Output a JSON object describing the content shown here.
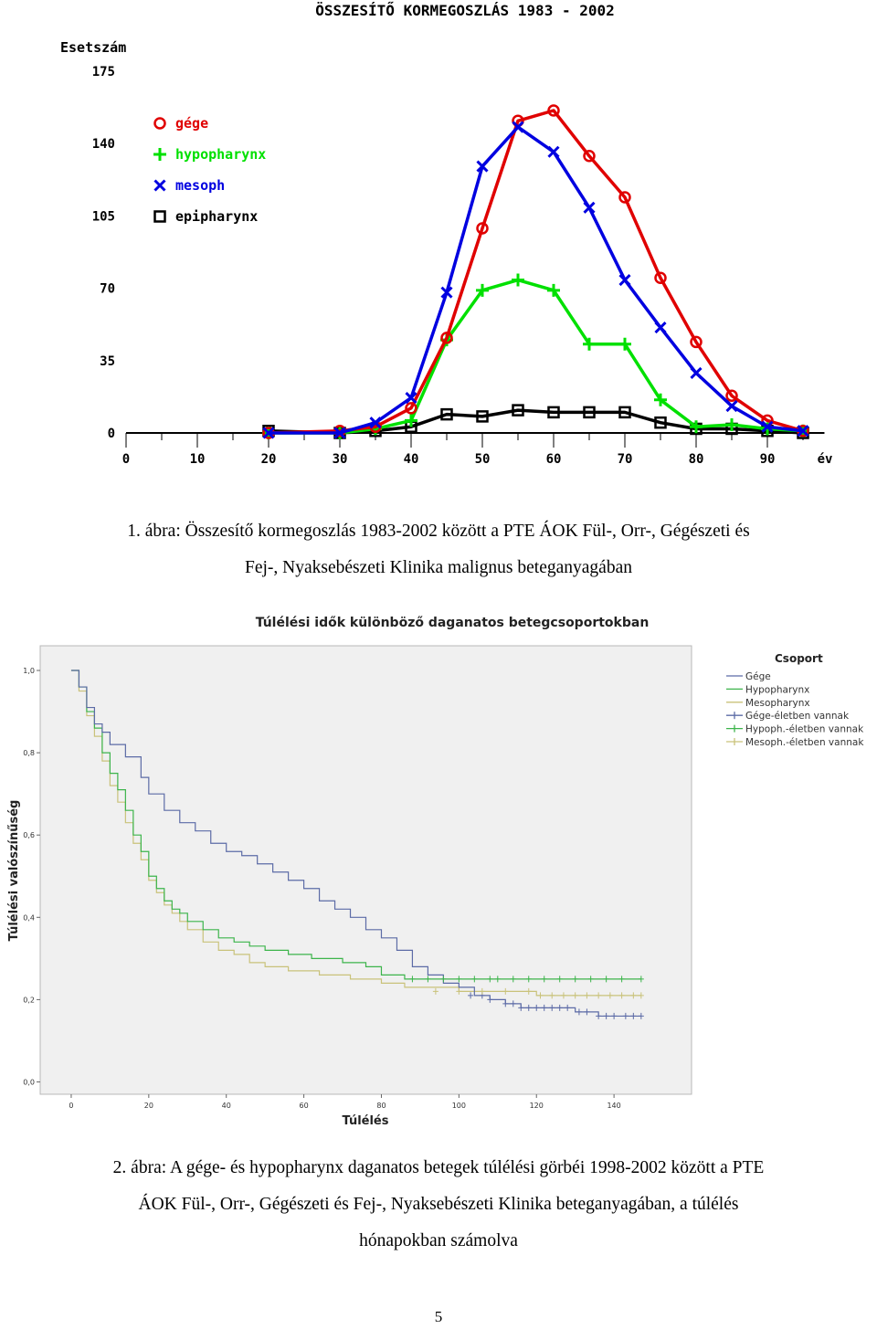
{
  "chart_data": [
    {
      "type": "line",
      "title": "ÖSSZESÍTŐ KORMEGOSZLÁS 1983 - 2002",
      "ylabel": "Esetszám",
      "xlabel": "év",
      "xlim": [
        0,
        98
      ],
      "ylim": [
        0,
        175
      ],
      "xticks": [
        0,
        10,
        20,
        30,
        40,
        50,
        60,
        70,
        80,
        90
      ],
      "yticks": [
        0,
        35,
        70,
        105,
        140,
        175
      ],
      "legend_position": "top-left",
      "baseline": [
        [
          0,
          0
        ],
        [
          20,
          0
        ],
        [
          30,
          0
        ],
        [
          35,
          0
        ],
        [
          40,
          0
        ],
        [
          98,
          0
        ]
      ],
      "series": [
        {
          "name": "gége",
          "color": "#e00000",
          "marker": "circle",
          "x": [
            20,
            30,
            35,
            40,
            45,
            50,
            55,
            60,
            65,
            70,
            75,
            80,
            85,
            90,
            95
          ],
          "y": [
            0,
            1,
            3,
            12,
            46,
            99,
            151,
            156,
            134,
            114,
            75,
            44,
            18,
            6,
            1
          ]
        },
        {
          "name": "hypopharynx",
          "color": "#00e000",
          "marker": "plus",
          "x": [
            20,
            30,
            35,
            40,
            45,
            50,
            55,
            60,
            65,
            70,
            75,
            80,
            85,
            90,
            95
          ],
          "y": [
            0,
            0,
            2,
            6,
            45,
            69,
            74,
            69,
            43,
            43,
            16,
            3,
            4,
            2,
            1
          ]
        },
        {
          "name": "mesoph",
          "color": "#0000e0",
          "marker": "x",
          "x": [
            20,
            30,
            35,
            40,
            45,
            50,
            55,
            60,
            65,
            70,
            75,
            80,
            85,
            90,
            95
          ],
          "y": [
            0,
            0,
            5,
            17,
            68,
            129,
            148,
            136,
            109,
            74,
            51,
            29,
            13,
            3,
            1
          ]
        },
        {
          "name": "epipharynx",
          "color": "#000000",
          "marker": "square",
          "x": [
            20,
            30,
            35,
            40,
            45,
            50,
            55,
            60,
            65,
            70,
            75,
            80,
            85,
            90,
            95
          ],
          "y": [
            1,
            0,
            1,
            3,
            9,
            8,
            11,
            10,
            10,
            10,
            5,
            2,
            2,
            1,
            0
          ]
        }
      ]
    },
    {
      "type": "line",
      "title": "Túlélési idők különböző daganatos betegcsoportokban",
      "xlabel": "Túlélés",
      "ylabel": "Túlélési valószínűség",
      "xlim": [
        -8,
        160
      ],
      "ylim": [
        -0.03,
        1.06
      ],
      "xticks": [
        0,
        20,
        40,
        60,
        80,
        100,
        120,
        140
      ],
      "yticks": [
        0.0,
        0.2,
        0.4,
        0.6,
        0.8,
        1.0
      ],
      "ytick_labels": [
        "0,0",
        "0,2",
        "0,4",
        "0,6",
        "0,8",
        "1,0"
      ],
      "legend_position": "right",
      "legend_title": "Csoport",
      "legend_entries": [
        "Gége",
        "Hypopharynx",
        "Mesopharynx",
        "Gége-életben vannak",
        "Hypoph.-életben vannak",
        "Mesoph.-életben vannak"
      ],
      "series": [
        {
          "name": "Gége",
          "color": "#5c6ba6",
          "x": [
            0,
            2,
            4,
            6,
            8,
            10,
            14,
            18,
            20,
            24,
            28,
            32,
            36,
            40,
            44,
            48,
            52,
            56,
            60,
            64,
            68,
            72,
            76,
            80,
            84,
            88,
            92,
            96,
            100,
            104,
            108,
            112,
            116,
            120,
            130,
            136,
            140,
            147
          ],
          "y": [
            1.0,
            0.96,
            0.91,
            0.87,
            0.85,
            0.82,
            0.79,
            0.74,
            0.7,
            0.66,
            0.63,
            0.61,
            0.58,
            0.56,
            0.55,
            0.53,
            0.51,
            0.49,
            0.47,
            0.44,
            0.42,
            0.4,
            0.37,
            0.35,
            0.32,
            0.28,
            0.26,
            0.24,
            0.23,
            0.21,
            0.2,
            0.19,
            0.18,
            0.18,
            0.17,
            0.16,
            0.16,
            0.16
          ]
        },
        {
          "name": "Hypopharynx",
          "color": "#3cb44b",
          "x": [
            0,
            2,
            4,
            6,
            8,
            10,
            12,
            14,
            16,
            18,
            20,
            22,
            24,
            26,
            28,
            30,
            34,
            38,
            42,
            46,
            50,
            56,
            62,
            70,
            76,
            80,
            86,
            92,
            100,
            120,
            147
          ],
          "y": [
            1.0,
            0.96,
            0.9,
            0.86,
            0.8,
            0.75,
            0.71,
            0.66,
            0.6,
            0.56,
            0.5,
            0.47,
            0.44,
            0.42,
            0.41,
            0.39,
            0.37,
            0.35,
            0.34,
            0.33,
            0.32,
            0.31,
            0.3,
            0.29,
            0.28,
            0.26,
            0.25,
            0.25,
            0.25,
            0.25,
            0.25
          ]
        },
        {
          "name": "Mesopharynx",
          "color": "#c9c27a",
          "x": [
            0,
            2,
            4,
            6,
            8,
            10,
            12,
            14,
            16,
            18,
            20,
            22,
            24,
            26,
            28,
            30,
            34,
            38,
            42,
            46,
            50,
            56,
            64,
            72,
            80,
            86,
            92,
            100,
            110,
            120,
            135,
            147
          ],
          "y": [
            1.0,
            0.95,
            0.89,
            0.84,
            0.78,
            0.72,
            0.68,
            0.63,
            0.58,
            0.54,
            0.49,
            0.46,
            0.43,
            0.41,
            0.39,
            0.37,
            0.34,
            0.32,
            0.31,
            0.29,
            0.28,
            0.27,
            0.26,
            0.25,
            0.24,
            0.23,
            0.23,
            0.22,
            0.22,
            0.21,
            0.21,
            0.21
          ]
        }
      ],
      "censored": [
        {
          "name": "Gége-életben vannak",
          "color": "#5c6ba6",
          "x": [
            103,
            106,
            108,
            112,
            114,
            116,
            118,
            120,
            122,
            124,
            126,
            128,
            131,
            133,
            136,
            138,
            140,
            143,
            145,
            147
          ],
          "y": [
            0.21,
            0.21,
            0.2,
            0.19,
            0.19,
            0.18,
            0.18,
            0.18,
            0.18,
            0.18,
            0.18,
            0.18,
            0.17,
            0.17,
            0.16,
            0.16,
            0.16,
            0.16,
            0.16,
            0.16
          ]
        },
        {
          "name": "Hypoph.-életben vannak",
          "color": "#3cb44b",
          "x": [
            88,
            92,
            96,
            100,
            104,
            108,
            110,
            114,
            118,
            122,
            126,
            130,
            134,
            138,
            142,
            147
          ],
          "y": [
            0.25,
            0.25,
            0.25,
            0.25,
            0.25,
            0.25,
            0.25,
            0.25,
            0.25,
            0.25,
            0.25,
            0.25,
            0.25,
            0.25,
            0.25,
            0.25
          ]
        },
        {
          "name": "Mesoph.-életben vannak",
          "color": "#c9c27a",
          "x": [
            94,
            100,
            106,
            112,
            118,
            121,
            124,
            127,
            130,
            133,
            136,
            139,
            142,
            145,
            147
          ],
          "y": [
            0.22,
            0.22,
            0.22,
            0.22,
            0.22,
            0.21,
            0.21,
            0.21,
            0.21,
            0.21,
            0.21,
            0.21,
            0.21,
            0.21,
            0.21
          ]
        }
      ]
    }
  ],
  "captions": {
    "fig1": {
      "line1": "1.  ábra: Összesítő kormegoszlás 1983-2002 között a PTE ÁOK Fül-, Orr-, Gégészeti és",
      "line2": "Fej-, Nyaksebészeti Klinika malignus beteganyagában"
    },
    "fig2": {
      "line1": "2. ábra: A gége- és hypopharynx daganatos betegek túlélési görbéi 1998-2002 között a PTE",
      "line2": "ÁOK Fül-, Orr-, Gégészeti és Fej-, Nyaksebészeti Klinika beteganyagában, a túlélés",
      "line3": "hónapokban számolva"
    }
  },
  "page_number": "5"
}
